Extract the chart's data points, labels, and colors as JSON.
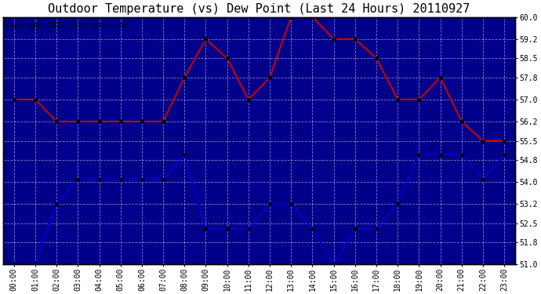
{
  "title": "Outdoor Temperature (vs) Dew Point (Last 24 Hours) 20110927",
  "copyright": "Copyright 2011 Cartronics.com",
  "x_labels": [
    "00:00",
    "01:00",
    "02:00",
    "03:00",
    "04:00",
    "05:00",
    "06:00",
    "07:00",
    "08:00",
    "09:00",
    "10:00",
    "11:00",
    "12:00",
    "13:00",
    "14:00",
    "15:00",
    "16:00",
    "17:00",
    "18:00",
    "19:00",
    "20:00",
    "21:00",
    "22:00",
    "23:00"
  ],
  "red_data": [
    57.0,
    57.0,
    56.2,
    56.2,
    56.2,
    56.2,
    56.2,
    56.2,
    57.8,
    59.2,
    58.5,
    57.0,
    57.8,
    60.0,
    60.0,
    59.2,
    59.2,
    58.5,
    57.0,
    57.0,
    57.8,
    56.2,
    55.5,
    55.5
  ],
  "blue_data": [
    51.0,
    51.0,
    53.2,
    54.1,
    54.1,
    54.1,
    54.1,
    54.1,
    55.0,
    52.3,
    52.3,
    52.3,
    53.2,
    53.2,
    52.3,
    51.0,
    52.3,
    52.3,
    53.2,
    55.0,
    55.0,
    55.0,
    54.1,
    55.0
  ],
  "red_color": "#cc0000",
  "blue_color": "#0000cc",
  "bg_color": "#ffffff",
  "plot_bg_color": "#00008b",
  "grid_color": "#ffffff",
  "ylim_min": 51.0,
  "ylim_max": 60.0,
  "yticks": [
    51.0,
    51.8,
    52.5,
    53.2,
    54.0,
    54.8,
    55.5,
    56.2,
    57.0,
    57.8,
    58.5,
    59.2,
    60.0
  ],
  "title_fontsize": 11,
  "copyright_fontsize": 6.5,
  "tick_fontsize": 7,
  "line_width": 1.5,
  "marker": "s",
  "marker_size": 3
}
